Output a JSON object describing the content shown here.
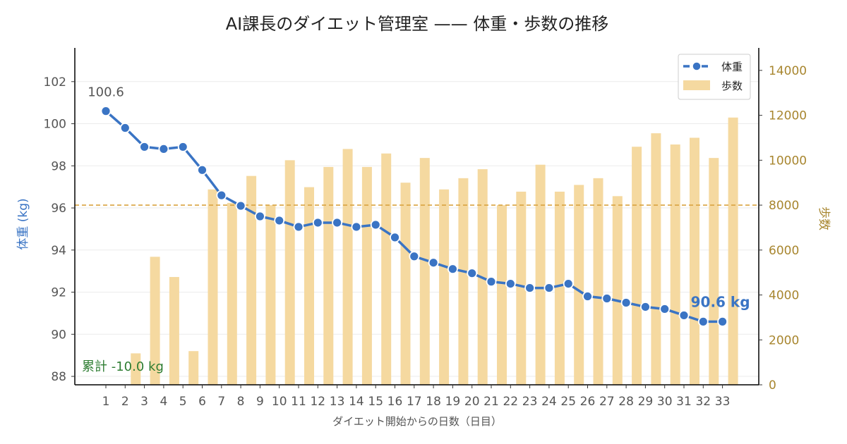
{
  "chart_data": {
    "type": "bar+line",
    "title": "AI課長のダイエット管理室 —— 体重・歩数の推移",
    "xlabel": "ダイエット開始からの日数（日目）",
    "categories": [
      "1",
      "2",
      "3",
      "4",
      "5",
      "6",
      "7",
      "8",
      "9",
      "10",
      "11",
      "12",
      "13",
      "14",
      "15",
      "16",
      "17",
      "18",
      "19",
      "20",
      "21",
      "22",
      "23",
      "24",
      "25",
      "26",
      "27",
      "28",
      "29",
      "30",
      "31",
      "32",
      "33"
    ],
    "left_axis": {
      "label": "体重 (kg)",
      "range": [
        87.6,
        103.6
      ],
      "ticks": [
        "88",
        "90",
        "92",
        "94",
        "96",
        "98",
        "100",
        "102"
      ]
    },
    "right_axis": {
      "label": "歩数",
      "range": [
        0,
        15000
      ],
      "ticks": [
        "0",
        "2000",
        "4000",
        "6000",
        "8000",
        "10000",
        "12000",
        "14000"
      ]
    },
    "series": [
      {
        "name": "体重",
        "kind": "line",
        "axis": "left",
        "color": "#3a74c4",
        "values": [
          100.6,
          99.8,
          98.9,
          98.8,
          98.9,
          97.8,
          96.6,
          96.1,
          95.6,
          95.4,
          95.1,
          95.3,
          95.3,
          95.1,
          95.2,
          94.6,
          93.7,
          93.4,
          93.1,
          92.9,
          92.5,
          92.4,
          92.2,
          92.2,
          92.4,
          91.8,
          91.7,
          91.5,
          91.3,
          91.2,
          90.9,
          90.6,
          90.6
        ]
      },
      {
        "name": "歩数",
        "kind": "bar",
        "axis": "right",
        "color": "#f5d9a0",
        "values": [
          0,
          1400,
          5700,
          4800,
          1500,
          8700,
          8100,
          9300,
          8000,
          10000,
          8800,
          9700,
          10500,
          9700,
          10300,
          9000,
          10100,
          8700,
          9200,
          9600,
          8000,
          8600,
          9800,
          8600,
          8900,
          9200,
          8400,
          10600,
          11200,
          10700,
          11000,
          10100,
          11900
        ]
      }
    ],
    "reference_line": {
      "axis": "right",
      "value": 8000,
      "color": "#d9a441",
      "style": "dashed"
    },
    "annotations": {
      "start": "100.6",
      "end": "90.6 kg",
      "cumulative": "累計 -10.0 kg"
    },
    "legend": {
      "placement": "top-right",
      "entries": [
        "体重",
        "歩数"
      ]
    },
    "grid": "horizontal"
  }
}
